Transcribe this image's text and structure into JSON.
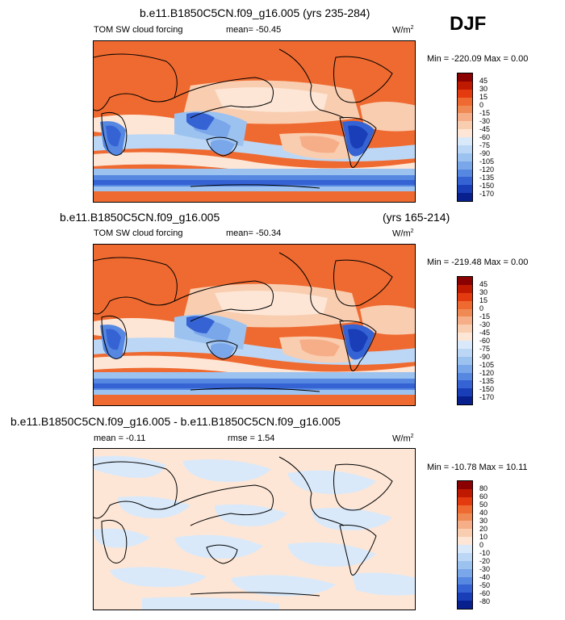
{
  "season": "DJF",
  "panels": [
    {
      "title": "b.e11.B1850C5CN.f09_g16.005 (yrs 235-284)",
      "title_right": "",
      "variable": "TOM SW cloud forcing",
      "stat1": "mean= -50.45",
      "stat2": "",
      "units": "W/m",
      "units_sup": "2",
      "minmax": "Min = -220.09 Max =   0.00",
      "colorbar_labels": [
        "45",
        "30",
        "15",
        "0",
        "-15",
        "-30",
        "-45",
        "-60",
        "-75",
        "-90",
        "-105",
        "-120",
        "-135",
        "-150",
        "-170"
      ]
    },
    {
      "title": "b.e11.B1850C5CN.f09_g16.005",
      "title_right": "(yrs 165-214)",
      "variable": "TOM SW cloud forcing",
      "stat1": "mean= -50.34",
      "stat2": "",
      "units": "W/m",
      "units_sup": "2",
      "minmax": "Min = -219.48 Max =   0.00",
      "colorbar_labels": [
        "45",
        "30",
        "15",
        "0",
        "-15",
        "-30",
        "-45",
        "-60",
        "-75",
        "-90",
        "-105",
        "-120",
        "-135",
        "-150",
        "-170"
      ]
    },
    {
      "title": "b.e11.B1850C5CN.f09_g16.005 - b.e11.B1850C5CN.f09_g16.005",
      "title_right": "",
      "variable": "",
      "stat1": "mean =  -0.11",
      "stat2": "rmse =   1.54",
      "units": "W/m",
      "units_sup": "2",
      "minmax": "Min = -10.78 Max =  10.11",
      "colorbar_labels": [
        "80",
        "60",
        "50",
        "40",
        "30",
        "20",
        "10",
        "0",
        "-10",
        "-20",
        "-30",
        "-40",
        "-50",
        "-60",
        "-80"
      ]
    }
  ],
  "colors": {
    "bar": [
      "#8b0000",
      "#bf1a00",
      "#e43a10",
      "#ef6a30",
      "#f08a55",
      "#f6ae88",
      "#f9cdb0",
      "#fde6d6",
      "#d9e9fa",
      "#bcd7f5",
      "#9cc2f0",
      "#7aa6ea",
      "#5688e2",
      "#3563d4",
      "#1a3eb8",
      "#08208e"
    ],
    "diff_bar": [
      "#8b0000",
      "#bf1a00",
      "#e43a10",
      "#ef6a30",
      "#f08a55",
      "#f6ae88",
      "#f9cdb0",
      "#fde6d6",
      "#d9e9fa",
      "#bcd7f5",
      "#9cc2f0",
      "#7aa6ea",
      "#5688e2",
      "#3563d4",
      "#1a3eb8",
      "#08208e"
    ]
  }
}
